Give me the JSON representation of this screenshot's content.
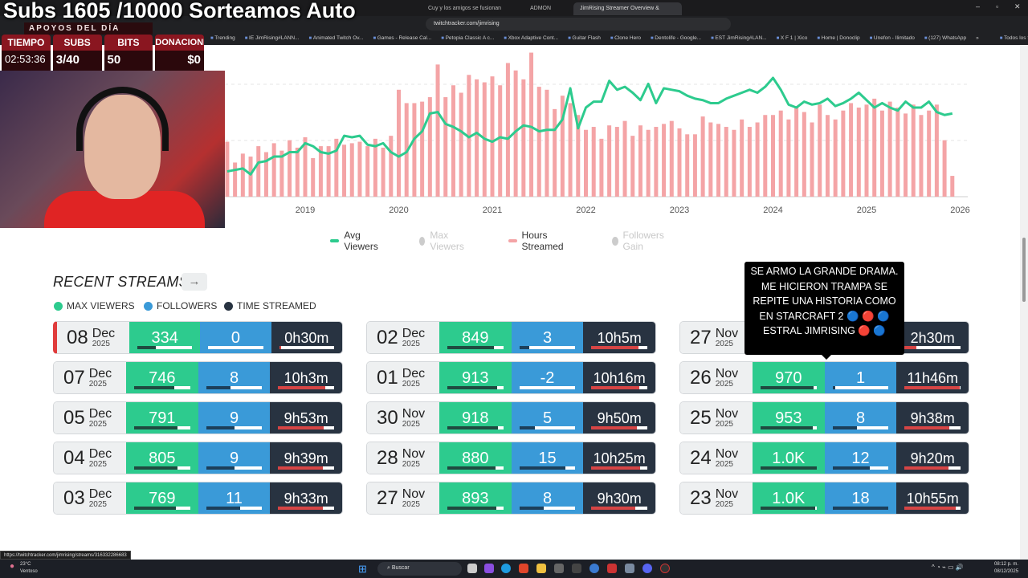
{
  "overlay": {
    "title": "Subs 1605 /10000 Sorteamos Auto",
    "support_header": "APOYOS DEL DÍA",
    "stats": [
      {
        "label": "TIEMPO",
        "value": "02:53:36"
      },
      {
        "label": "SUBS",
        "value": "3/40"
      },
      {
        "label": "BITS",
        "value": "50"
      },
      {
        "label": "DONACIONES",
        "value": "$0"
      }
    ]
  },
  "browser": {
    "tabs": [
      "Cuy y los amigos se fusionan",
      "ADMON",
      "JimRising Streamer Overview &"
    ],
    "address": "twitchtracker.com/jimrising",
    "bookmarks": [
      "Trending",
      "IE JimRising#LANN...",
      "Animated Twitch Ov...",
      "Games - Release Cal...",
      "Petopia Classic A c...",
      "Xbox Adaptive Cont...",
      "Guitar Flash",
      "Clone Hero",
      "Dentolife - Google...",
      "EST JimRising#LAN...",
      "X F 1 | Xico",
      "Home | Donoclip",
      "Unefon - Ilimitado",
      "(127) WhatsApp",
      "»",
      "Todos los favoritos"
    ]
  },
  "chart_data": {
    "type": "bar+line",
    "title": "",
    "xlabel": "",
    "ylabel": "",
    "ylim": [
      0,
      100
    ],
    "grid": true,
    "legend_placement": "bottom-center",
    "x_start": "2018-03",
    "x_end": "2025-12",
    "x_ticks": [
      "2019",
      "2020",
      "2021",
      "2022",
      "2023",
      "2024",
      "2025",
      "2026"
    ],
    "legend": [
      {
        "name": "Avg Viewers",
        "active": true,
        "color": "#2dcb8e"
      },
      {
        "name": "Max Viewers",
        "active": false,
        "color": "#ccc"
      },
      {
        "name": "Hours Streamed",
        "active": true,
        "color": "#f4a4a6"
      },
      {
        "name": "Followers Gain",
        "active": false,
        "color": "#ccc"
      }
    ],
    "series": [
      {
        "name": "Hours Streamed",
        "kind": "bar",
        "values": [
          37,
          23,
          29,
          27,
          34,
          30,
          36,
          31,
          38,
          33,
          40,
          26,
          34,
          34,
          39,
          35,
          36,
          37,
          34,
          39,
          33,
          41,
          72,
          63,
          63,
          64,
          67,
          89,
          67,
          75,
          70,
          82,
          79,
          77,
          81,
          75,
          90,
          85,
          79,
          97,
          74,
          72,
          59,
          68,
          63,
          55,
          45,
          47,
          39,
          48,
          47,
          51,
          41,
          48,
          45,
          47,
          49,
          51,
          46,
          42,
          42,
          54,
          50,
          49,
          47,
          45,
          52,
          47,
          50,
          55,
          55,
          58,
          52,
          60,
          57,
          50,
          62,
          55,
          52,
          58,
          63,
          60,
          62,
          66,
          58,
          64,
          60,
          56,
          62,
          55,
          58,
          62,
          38,
          14
        ]
      },
      {
        "name": "Avg Viewers",
        "kind": "line",
        "values": [
          17,
          18,
          19,
          15,
          23,
          24,
          27,
          27,
          30,
          30,
          36,
          34,
          30,
          29,
          31,
          41,
          40,
          41,
          35,
          34,
          36,
          30,
          27,
          30,
          39,
          44,
          56,
          57,
          49,
          47,
          44,
          40,
          43,
          39,
          37,
          40,
          39,
          44,
          48,
          47,
          44,
          45,
          45,
          52,
          73,
          46,
          60,
          64,
          64,
          78,
          72,
          74,
          70,
          65,
          76,
          63,
          73,
          72,
          71,
          68,
          66,
          65,
          63,
          63,
          66,
          68,
          70,
          72,
          70,
          74,
          80,
          72,
          62,
          60,
          64,
          62,
          63,
          66,
          61,
          63,
          66,
          70,
          65,
          60,
          63,
          60,
          58,
          64,
          60,
          60,
          64,
          57,
          55,
          56
        ]
      }
    ]
  },
  "recent": {
    "title": "RECENT STREAMS",
    "keys": [
      "MAX VIEWERS",
      "FOLLOWERS",
      "TIME STREAMED"
    ],
    "columns": [
      [
        {
          "day": "08",
          "month": "Dec",
          "year": "2025",
          "viewers": "334",
          "vf": 0.33,
          "followers": "0",
          "ff": 0,
          "time": "0h30m",
          "tf": 0.04,
          "live": true
        },
        {
          "day": "07",
          "month": "Dec",
          "year": "2025",
          "viewers": "746",
          "vf": 0.72,
          "followers": "8",
          "ff": 0.44,
          "time": "10h3m",
          "tf": 0.84
        },
        {
          "day": "05",
          "month": "Dec",
          "year": "2025",
          "viewers": "791",
          "vf": 0.77,
          "followers": "9",
          "ff": 0.5,
          "time": "9h53m",
          "tf": 0.82
        },
        {
          "day": "04",
          "month": "Dec",
          "year": "2025",
          "viewers": "805",
          "vf": 0.78,
          "followers": "9",
          "ff": 0.5,
          "time": "9h39m",
          "tf": 0.8
        },
        {
          "day": "03",
          "month": "Dec",
          "year": "2025",
          "viewers": "769",
          "vf": 0.75,
          "followers": "11",
          "ff": 0.61,
          "time": "9h33m",
          "tf": 0.8
        }
      ],
      [
        {
          "day": "02",
          "month": "Dec",
          "year": "2025",
          "viewers": "849",
          "vf": 0.83,
          "followers": "3",
          "ff": 0.17,
          "time": "10h5m",
          "tf": 0.84
        },
        {
          "day": "01",
          "month": "Dec",
          "year": "2025",
          "viewers": "913",
          "vf": 0.89,
          "followers": "-2",
          "ff": 0,
          "time": "10h16m",
          "tf": 0.86
        },
        {
          "day": "30",
          "month": "Nov",
          "year": "2025",
          "viewers": "918",
          "vf": 0.9,
          "followers": "5",
          "ff": 0.28,
          "time": "9h50m",
          "tf": 0.82
        },
        {
          "day": "28",
          "month": "Nov",
          "year": "2025",
          "viewers": "880",
          "vf": 0.86,
          "followers": "15",
          "ff": 0.83,
          "time": "10h25m",
          "tf": 0.87
        },
        {
          "day": "27",
          "month": "Nov",
          "year": "2025",
          "viewers": "893",
          "vf": 0.87,
          "followers": "8",
          "ff": 0.44,
          "time": "9h30m",
          "tf": 0.79
        }
      ],
      [
        {
          "day": "27",
          "month": "Nov",
          "year": "2025",
          "time": "2h30m",
          "tf": 0.21
        },
        {
          "day": "26",
          "month": "Nov",
          "year": "2025",
          "viewers": "970",
          "vf": 0.95,
          "followers": "1",
          "ff": 0.05,
          "time": "11h46m",
          "tf": 0.98
        },
        {
          "day": "25",
          "month": "Nov",
          "year": "2025",
          "viewers": "953",
          "vf": 0.93,
          "followers": "8",
          "ff": 0.44,
          "time": "9h38m",
          "tf": 0.8
        },
        {
          "day": "24",
          "month": "Nov",
          "year": "2025",
          "viewers": "1.0K",
          "vf": 1.0,
          "followers": "12",
          "ff": 0.67,
          "time": "9h20m",
          "tf": 0.78
        },
        {
          "day": "23",
          "month": "Nov",
          "year": "2025",
          "viewers": "1.0K",
          "vf": 0.97,
          "followers": "18",
          "ff": 1.0,
          "time": "10h55m",
          "tf": 0.91
        }
      ]
    ],
    "tooltip": "SE ARMO LA GRANDE DRAMA. ME HICIERON TRAMPA SE REPITE UNA HISTORIA COMO EN STARCRAFT 2 🔵 🔴 🔵 ESTRAL JIMRISING 🔴 🔵"
  },
  "status_url": "https://twitchtracker.com/jimrising/streams/316332286683",
  "taskbar": {
    "temp": "23°C",
    "weather": "Ventoso",
    "search": "Buscar",
    "time": "08:12 p. m.",
    "date": "08/12/2025"
  },
  "colors": {
    "viewers": "#2dcb8e",
    "followers": "#3a9ad8",
    "time": "#283341",
    "hours_bar": "#f4a4a6"
  }
}
